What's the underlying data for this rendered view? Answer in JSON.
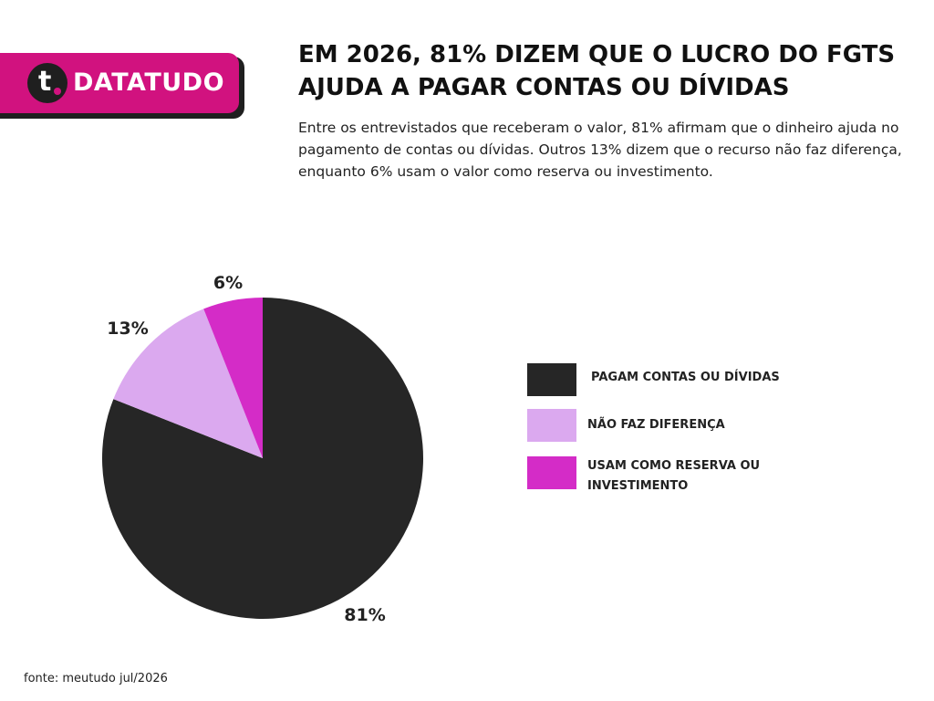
{
  "brand": {
    "name": "DATATUDO",
    "logo_letter": "t"
  },
  "title": "EM 2026, 81% DIZEM QUE O LUCRO DO FGTS AJUDA A PAGAR CONTAS OU DÍVIDAS",
  "subtitle": "Entre os entrevistados que receberam o valor, 81% afirmam que o dinheiro ajuda no pagamento de contas ou dívidas. Outros 13% dizem que o recurso não faz diferença, enquanto 6% usam o valor como reserva ou investimento.",
  "source": "fonte: meutudo jul/2026",
  "colors": {
    "brand": "#d1127f",
    "dark": "#262626",
    "light": "#dba9ef",
    "magenta": "#d42cc7"
  },
  "chart_data": {
    "type": "pie",
    "title": "",
    "slices": [
      {
        "label": "PAGAM CONTAS OU DÍVIDAS",
        "value": 81,
        "display": "81%",
        "color": "#262626"
      },
      {
        "label": "NÃO FAZ DIFERENÇA",
        "value": 13,
        "display": "13%",
        "color": "#dba9ef"
      },
      {
        "label": "USAM COMO RESERVA OU INVESTIMENTO",
        "value": 6,
        "display": "6%",
        "color": "#d42cc7"
      }
    ],
    "start": "12 o'clock",
    "direction": "clockwise",
    "legend_position": "right"
  }
}
